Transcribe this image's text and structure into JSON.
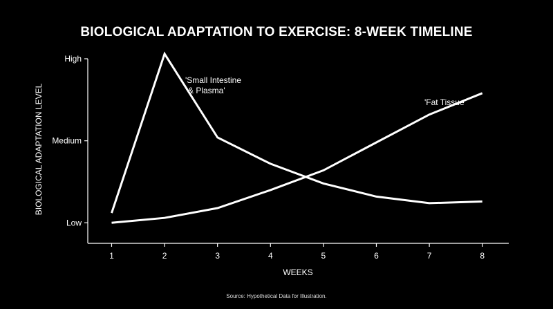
{
  "chart_data": {
    "type": "line",
    "title": "BIOLOGICAL ADAPTATION TO EXERCISE: 8-WEEK TIMELINE",
    "xlabel": "WEEKS",
    "ylabel": "BIOLOGICAL ADAPTATION LEVEL",
    "x": [
      1,
      2,
      3,
      4,
      5,
      6,
      7,
      8
    ],
    "x_ticks": [
      "1",
      "2",
      "3",
      "4",
      "5",
      "6",
      "7",
      "8"
    ],
    "y_ticks": [
      {
        "label": "Low",
        "value": 0
      },
      {
        "label": "Medium",
        "value": 50
      },
      {
        "label": "High",
        "value": 100
      }
    ],
    "xlim": [
      0.55,
      8.5
    ],
    "ylim": [
      -12.5,
      100
    ],
    "grid": false,
    "legend": "none",
    "line_color": "#ffffff",
    "series": [
      {
        "name": "'Small Intestine & Plasma'",
        "label_lines": [
          "'Small Intestine",
          "& Plasma'"
        ],
        "values": [
          6,
          103,
          52,
          36,
          24,
          16,
          12,
          13
        ]
      },
      {
        "name": "'Fat Tissue'",
        "label_lines": [
          "'Fat Tissue'"
        ],
        "values": [
          0,
          3,
          9,
          20,
          32,
          49,
          66,
          79
        ]
      }
    ]
  },
  "source": "Source: Hypothetical Data for Illustration."
}
